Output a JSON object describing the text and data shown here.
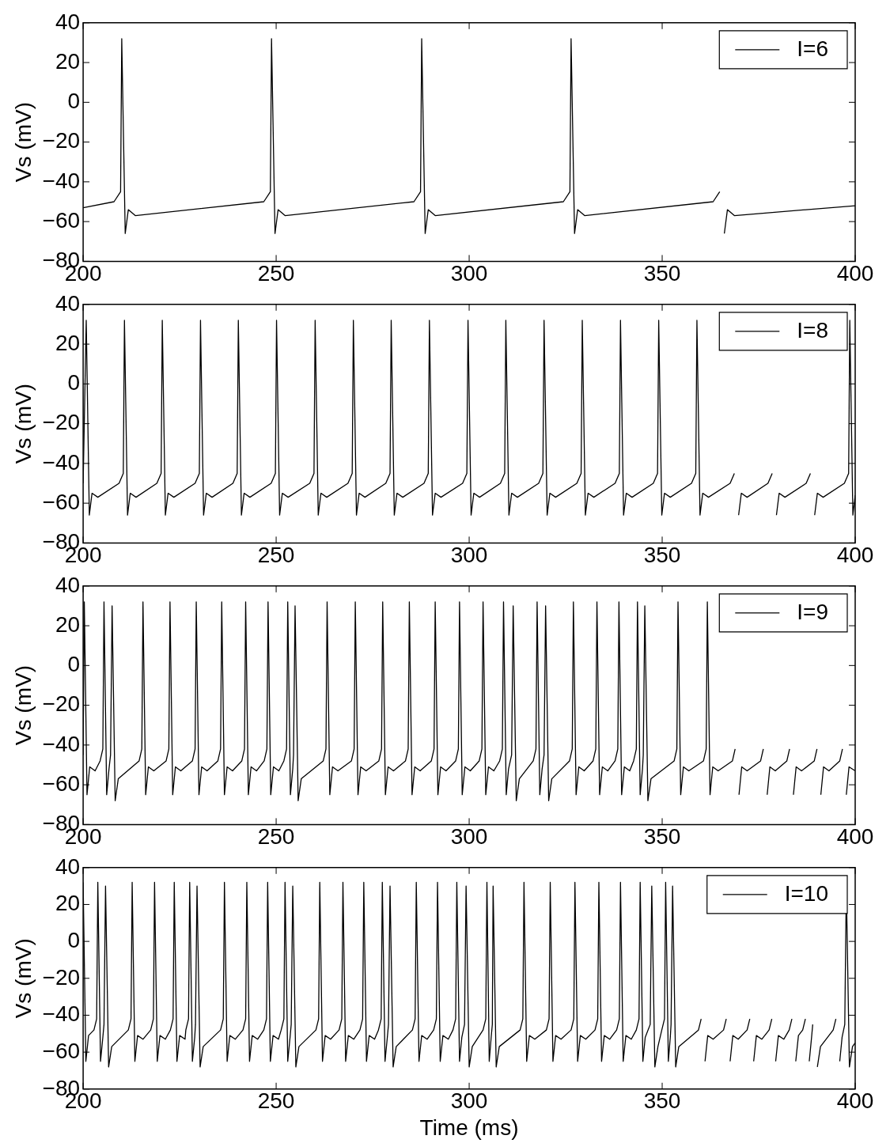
{
  "chart_data": [
    {
      "type": "line",
      "ylabel": "Vs (mV)",
      "xlim": [
        200,
        400
      ],
      "xticks": [
        200,
        250,
        300,
        350,
        400
      ],
      "ylim": [
        -80,
        40
      ],
      "yticks": [
        -80,
        -60,
        -40,
        -20,
        0,
        20,
        40
      ],
      "legend": "top right",
      "grid": false,
      "marker": "none",
      "line_style": "solid",
      "series": [
        {
          "name": "I=6",
          "color": "#000000",
          "x": [
            200,
            208,
            209.7,
            210,
            210.9,
            211.7,
            213.5,
            246.8,
            248.5,
            248.8,
            249.7,
            250.5,
            252.3,
            285.7,
            287.4,
            287.7,
            288.6,
            289.4,
            291.2,
            324.4,
            326.1,
            326.4,
            327.3,
            328.1,
            329.9,
            363.2,
            364.9,
            365.2,
            366.1,
            366.9,
            368.7,
            400
          ],
          "values": [
            -53,
            -50,
            -45,
            32,
            -66,
            -54,
            -57,
            -50,
            -45,
            32,
            -66,
            -54,
            -57,
            -50,
            -45,
            32,
            -66,
            -54,
            -57,
            -50,
            -45,
            32,
            -66,
            -54,
            -57,
            -50,
            -45,
            null,
            -66,
            -54,
            -57,
            -52
          ]
        }
      ]
    },
    {
      "type": "line",
      "ylabel": "Vs (mV)",
      "xlim": [
        200,
        400
      ],
      "xticks": [
        200,
        250,
        300,
        350,
        400
      ],
      "ylim": [
        -80,
        40
      ],
      "yticks": [
        -80,
        -60,
        -40,
        -20,
        0,
        20,
        40
      ],
      "legend": "top right",
      "grid": false,
      "marker": "none",
      "line_style": "solid",
      "series": [
        {
          "name": "I=8",
          "color": "#000000",
          "x": [
            200,
            200.8,
            201.6,
            202.3,
            203.8,
            209.3,
            210.4,
            210.7,
            211.5,
            212.2,
            213.7,
            219.1,
            220.2,
            220.5,
            221.3,
            222,
            223.5,
            229,
            230.1,
            230.4,
            231.2,
            231.9,
            233.4,
            238.8,
            239.9,
            240.2,
            241,
            241.7,
            243.2,
            248.7,
            249.8,
            250.1,
            250.9,
            251.6,
            253.1,
            258.7,
            259.8,
            260.1,
            260.9,
            261.6,
            263.1,
            268.6,
            269.7,
            270,
            270.8,
            271.5,
            273,
            278.4,
            279.5,
            279.8,
            280.6,
            281.3,
            282.8,
            288.3,
            289.4,
            289.7,
            290.5,
            291.2,
            292.7,
            298.3,
            299.4,
            299.7,
            300.5,
            301.2,
            302.7,
            308.1,
            309.2,
            309.5,
            310.3,
            311,
            312.5,
            318,
            319.1,
            319.4,
            320.2,
            320.9,
            322.4,
            327.9,
            329,
            329.3,
            330.1,
            330.8,
            332.3,
            337.8,
            338.9,
            339.2,
            340,
            340.7,
            342.2,
            347.7,
            348.8,
            349.1,
            349.9,
            350.6,
            352.1,
            357.6,
            358.7,
            359,
            359.8,
            360.5,
            362,
            367.6,
            368.7,
            369,
            369.8,
            370.5,
            372,
            377.4,
            378.5,
            378.8,
            379.6,
            380.3,
            381.8,
            387.3,
            388.4,
            388.7,
            389.5,
            390.2,
            391.7,
            397.2,
            398.3,
            398.6,
            399.4,
            400
          ],
          "values": [
            -50,
            32,
            -66,
            -55,
            -57,
            -50,
            -45,
            32,
            -66,
            -55,
            -57,
            -50,
            -45,
            32,
            -66,
            -55,
            -57,
            -50,
            -45,
            32,
            -66,
            -55,
            -57,
            -50,
            -45,
            32,
            -66,
            -55,
            -57,
            -50,
            -45,
            32,
            -66,
            -55,
            -57,
            -50,
            -45,
            32,
            -66,
            -55,
            -57,
            -50,
            -45,
            32,
            -66,
            -55,
            -57,
            -50,
            -45,
            32,
            -66,
            -55,
            -57,
            -50,
            -45,
            32,
            -66,
            -55,
            -57,
            -50,
            -45,
            32,
            -66,
            -55,
            -57,
            -50,
            -45,
            32,
            -66,
            -55,
            -57,
            -50,
            -45,
            32,
            -66,
            -55,
            -57,
            -50,
            -45,
            32,
            -66,
            -55,
            -57,
            -50,
            -45,
            32,
            -66,
            -55,
            -57,
            -50,
            -45,
            32,
            -66,
            -55,
            -57,
            -50,
            -45,
            32,
            -66,
            -55,
            -57,
            -50,
            -45,
            null,
            -66,
            -55,
            -57,
            -50,
            -45,
            null,
            -66,
            -55,
            -57,
            -50,
            -45,
            null,
            -66,
            -55,
            -57,
            -50,
            -45,
            32,
            -66,
            -56
          ]
        }
      ]
    },
    {
      "type": "line",
      "ylabel": "Vs (mV)",
      "xlim": [
        200,
        400
      ],
      "xticks": [
        200,
        250,
        300,
        350,
        400
      ],
      "ylim": [
        -80,
        40
      ],
      "yticks": [
        -80,
        -60,
        -40,
        -20,
        0,
        20,
        40
      ],
      "legend": "top right",
      "grid": false,
      "marker": "none",
      "line_style": "solid",
      "series": [
        {
          "name": "I=9",
          "color": "#000000",
          "x": [
            200,
            200.3,
            201,
            201.7,
            203.1,
            204.4,
            205.1,
            205.4,
            206.1,
            206.7,
            207.1,
            207.5,
            208.3,
            209.1,
            214.5,
            215.2,
            215.5,
            216.2,
            216.9,
            218.3,
            221.5,
            222.2,
            222.5,
            223.2,
            223.9,
            225.3,
            228.3,
            229,
            229.3,
            230,
            230.7,
            232.1,
            234.9,
            235.6,
            235.9,
            236.6,
            237.3,
            238.7,
            241.1,
            241.8,
            242.1,
            242.8,
            243.5,
            244.9,
            246.9,
            247.6,
            247.9,
            248.6,
            249.3,
            250.7,
            252,
            252.7,
            253,
            253.7,
            254.3,
            254.5,
            254.9,
            255.7,
            256.5,
            262.2,
            262.9,
            263.2,
            263.9,
            264.6,
            266,
            269.5,
            270.2,
            270.5,
            271.2,
            271.9,
            273.3,
            276.6,
            277.3,
            277.6,
            278.3,
            279,
            280.4,
            283.5,
            284.2,
            284.5,
            285.2,
            285.9,
            287.3,
            290.2,
            290.9,
            291.2,
            291.9,
            292.6,
            294,
            296.5,
            297.2,
            297.5,
            298.2,
            298.9,
            300.3,
            302.6,
            303.3,
            303.6,
            304.3,
            305,
            306.4,
            307.9,
            308.6,
            308.9,
            309.6,
            310.2,
            311,
            311.4,
            312.2,
            313,
            316.6,
            317.3,
            317.6,
            318.3,
            318.9,
            319.4,
            319.8,
            320.6,
            321.4,
            326,
            326.7,
            327,
            327.7,
            328.4,
            329.8,
            332.1,
            332.8,
            333.1,
            333.8,
            334.5,
            335.9,
            337.8,
            338.5,
            338.8,
            339.5,
            340.2,
            341.6,
            342.6,
            343.3,
            343.6,
            344.3,
            344.9,
            345.1,
            345.5,
            346.3,
            347.1,
            353.1,
            353.8,
            354.1,
            354.8,
            355.5,
            356.9,
            360.7,
            361.4,
            361.7,
            362.4,
            363.1,
            364.5,
            368.2,
            368.9,
            369.2,
            369.9,
            370.6,
            372,
            375.5,
            376.2,
            376.5,
            377.2,
            377.9,
            379.3,
            382.3,
            383,
            383.3,
            384,
            384.7,
            386.1,
            389.4,
            390.1,
            390.4,
            391.1,
            391.8,
            393.2,
            396,
            396.7,
            397,
            397.7,
            398.4,
            400
          ],
          "values": [
            -45,
            32,
            -65,
            -51,
            -53,
            -48,
            -42,
            32,
            -65,
            -52,
            -45,
            30,
            -68,
            -57,
            -48,
            -42,
            32,
            -65,
            -51,
            -53,
            -48,
            -42,
            32,
            -65,
            -51,
            -53,
            -48,
            -42,
            32,
            -65,
            -51,
            -53,
            -48,
            -42,
            32,
            -65,
            -51,
            -53,
            -48,
            -42,
            32,
            -65,
            -51,
            -53,
            -48,
            -42,
            32,
            -65,
            -51,
            -53,
            -48,
            -42,
            32,
            -65,
            -52,
            -45,
            30,
            -68,
            -57,
            -48,
            -42,
            32,
            -65,
            -51,
            -53,
            -48,
            -42,
            32,
            -65,
            -51,
            -53,
            -48,
            -42,
            32,
            -65,
            -51,
            -53,
            -48,
            -42,
            32,
            -65,
            -51,
            -53,
            -48,
            -42,
            32,
            -65,
            -51,
            -53,
            -48,
            -42,
            32,
            -65,
            -51,
            -53,
            -48,
            -42,
            32,
            -65,
            -51,
            -53,
            -48,
            -42,
            32,
            -65,
            -52,
            -45,
            30,
            -68,
            -57,
            -48,
            -42,
            32,
            -65,
            -52,
            -45,
            30,
            -68,
            -57,
            -48,
            -42,
            32,
            -65,
            -51,
            -53,
            -48,
            -42,
            32,
            -65,
            -51,
            -53,
            -48,
            -42,
            32,
            -65,
            -51,
            -53,
            -48,
            -42,
            32,
            -65,
            -52,
            -45,
            30,
            -68,
            -57,
            -48,
            -42,
            32,
            -65,
            -51,
            -53,
            -48,
            -42,
            32,
            -65,
            -51,
            -53,
            -48,
            -42,
            null,
            -65,
            -51,
            -53,
            -48,
            -42,
            null,
            -65,
            -51,
            -53,
            -48,
            -42,
            null,
            -65,
            -51,
            -53,
            -48,
            -42,
            null,
            -65,
            -51,
            -53,
            -48,
            -42,
            null,
            -65,
            -51,
            -53
          ]
        }
      ]
    },
    {
      "type": "line",
      "xlabel": "Time (ms)",
      "ylabel": "Vs (mV)",
      "xlim": [
        200,
        400
      ],
      "xticks": [
        200,
        250,
        300,
        350,
        400
      ],
      "ylim": [
        -80,
        40
      ],
      "yticks": [
        -80,
        -60,
        -40,
        -20,
        0,
        20,
        40
      ],
      "legend": "top right",
      "grid": false,
      "marker": "none",
      "line_style": "solid",
      "series": [
        {
          "name": "I=10",
          "color": "#000000",
          "x": [
            200,
            200.7,
            201.4,
            202.8,
            203.5,
            203.8,
            204.5,
            205.1,
            205.4,
            205.8,
            206.6,
            207.4,
            211.7,
            212.4,
            212.7,
            213.4,
            214.1,
            215.5,
            217.5,
            218.2,
            218.5,
            219.2,
            219.9,
            221.3,
            222.6,
            223.3,
            223.6,
            224.3,
            225,
            226.4,
            226.6,
            227.3,
            227.6,
            228.3,
            228.9,
            229.1,
            229.5,
            230.3,
            231.1,
            235.6,
            236.3,
            236.6,
            237.3,
            238,
            239.4,
            241.4,
            242.1,
            242.4,
            243.1,
            243.8,
            245.2,
            246.8,
            247.5,
            247.8,
            248.5,
            249.2,
            250.6,
            251.3,
            252,
            252.3,
            253,
            253.6,
            253.9,
            254.3,
            255.1,
            255.9,
            260.3,
            261,
            261.3,
            262,
            262.7,
            264.1,
            266.3,
            267,
            267.3,
            268,
            268.7,
            270.1,
            271.7,
            272.4,
            272.7,
            273.4,
            274.1,
            275.5,
            276.5,
            277.2,
            277.5,
            278.2,
            278.8,
            279.1,
            279.5,
            280.3,
            281.1,
            285.3,
            286,
            286.3,
            287,
            287.7,
            289.1,
            290.8,
            291.5,
            291.8,
            292.5,
            293.2,
            294.6,
            295.8,
            296.5,
            296.8,
            297.5,
            298.1,
            298.8,
            299.2,
            300,
            300.8,
            303.6,
            304.3,
            304.6,
            305.2,
            305.7,
            306,
            306.2,
            307,
            307.8,
            313.2,
            313.9,
            314.2,
            314.9,
            315.6,
            317,
            320,
            320.7,
            321,
            321.7,
            322.4,
            323.8,
            326.4,
            327.1,
            327.4,
            328.1,
            328.8,
            330.2,
            332.6,
            333.3,
            333.6,
            334.3,
            335,
            336.4,
            338.2,
            338.9,
            339.2,
            339.9,
            340.6,
            342,
            343.3,
            344,
            344.3,
            345,
            345.6,
            346.9,
            347.3,
            348.1,
            348.9,
            349.9,
            350.6,
            350.9,
            351.6,
            352.1,
            352.3,
            352.7,
            353.5,
            354.3,
            359.4,
            360.1,
            360.4,
            361.1,
            361.8,
            363.2,
            365.9,
            366.6,
            366.9,
            367.6,
            368.3,
            369.7,
            372,
            372.7,
            373,
            373.7,
            374.4,
            375.8,
            377.7,
            378.4,
            378.7,
            379.4,
            380.1,
            381.5,
            382.9,
            383.6,
            383.9,
            384.6,
            385.3,
            386.4,
            387.1,
            387.4,
            388.1,
            388.7,
            389,
            389.4,
            390.2,
            391,
            394.3,
            395,
            395.3,
            396,
            396.6,
            397.3,
            397.7,
            398.5,
            399.3,
            400
          ],
          "values": [
            32,
            -65,
            -51,
            -48,
            -42,
            32,
            -65,
            -52,
            -45,
            30,
            -68,
            -57,
            -48,
            -42,
            32,
            -65,
            -51,
            -53,
            -48,
            -42,
            32,
            -65,
            -51,
            -53,
            -48,
            -42,
            32,
            -65,
            -51,
            -53,
            -48,
            -42,
            32,
            -65,
            -52,
            -45,
            30,
            -68,
            -57,
            -48,
            -42,
            32,
            -65,
            -51,
            -53,
            -48,
            -42,
            32,
            -65,
            -51,
            -53,
            -48,
            -42,
            32,
            -65,
            -51,
            -53,
            -48,
            -42,
            32,
            -65,
            -52,
            -45,
            30,
            -68,
            -57,
            -48,
            -42,
            32,
            -65,
            -51,
            -53,
            -48,
            -42,
            32,
            -65,
            -51,
            -53,
            -48,
            -42,
            32,
            -65,
            -51,
            -53,
            -48,
            -42,
            32,
            -65,
            -52,
            -45,
            30,
            -68,
            -57,
            -48,
            -42,
            32,
            -65,
            -51,
            -53,
            -48,
            -42,
            32,
            -65,
            -51,
            -53,
            -48,
            -42,
            32,
            -65,
            -52,
            -45,
            30,
            -68,
            -57,
            -48,
            -42,
            32,
            -65,
            -52,
            -45,
            30,
            -68,
            -57,
            -48,
            -42,
            32,
            -65,
            -51,
            -53,
            -48,
            -42,
            32,
            -65,
            -51,
            -53,
            -48,
            -42,
            32,
            -65,
            -51,
            -53,
            -48,
            -42,
            32,
            -65,
            -51,
            -53,
            -48,
            -42,
            32,
            -65,
            -51,
            -53,
            -48,
            -42,
            32,
            -65,
            -52,
            -45,
            30,
            -68,
            -57,
            -48,
            -42,
            32,
            -65,
            -52,
            -45,
            30,
            -68,
            -57,
            -48,
            -42,
            null,
            -65,
            -51,
            -53,
            -48,
            -42,
            null,
            -65,
            -51,
            -53,
            -48,
            -42,
            null,
            -65,
            -51,
            -53,
            -48,
            -42,
            null,
            -65,
            -51,
            -53,
            -48,
            -42,
            null,
            -65,
            -51,
            -48,
            -42,
            null,
            -65,
            -52,
            -45,
            null,
            -68,
            -57,
            -48,
            -42,
            null,
            -65,
            -52,
            -45,
            30,
            -68,
            -57,
            -55
          ]
        }
      ]
    }
  ]
}
